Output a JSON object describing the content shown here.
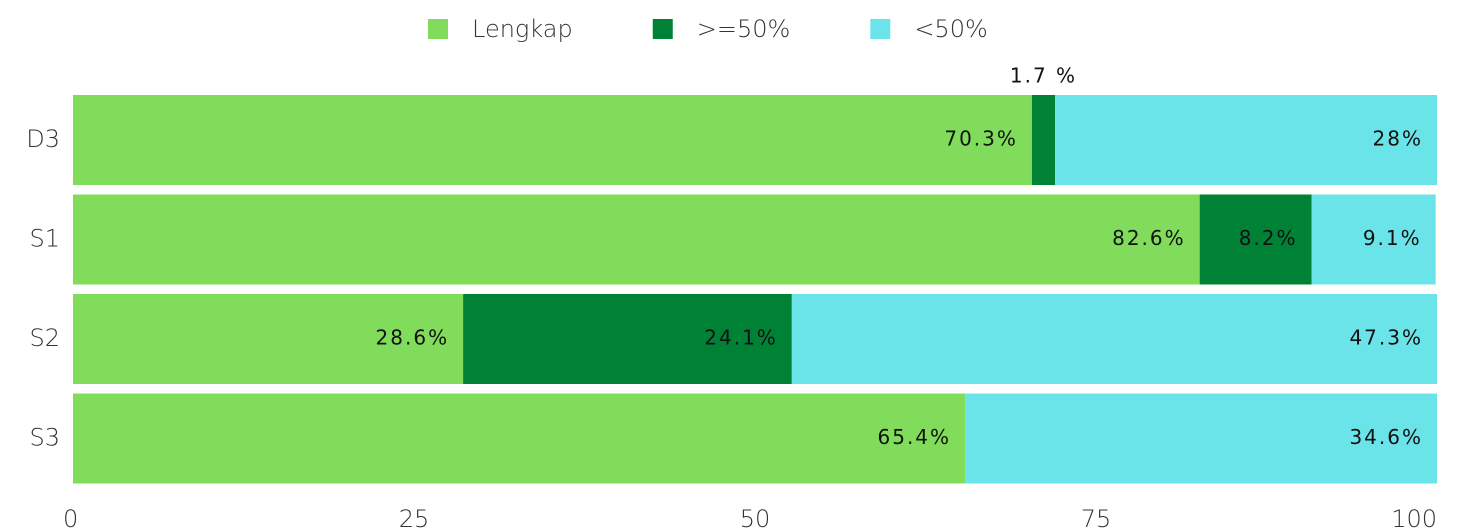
{
  "chart_data": {
    "type": "stacked_barh",
    "categories": [
      "D3",
      "S1",
      "S2",
      "S3"
    ],
    "series": [
      {
        "name": "Lengkap",
        "color": "#80dc5a",
        "values": [
          70.3,
          82.6,
          28.6,
          65.4
        ],
        "value_labels": [
          "70.3%",
          "82.6%",
          "28.6%",
          "65.4%"
        ]
      },
      {
        "name": ">=50%",
        "color": "#008236",
        "values": [
          1.7,
          8.2,
          24.1,
          null
        ],
        "value_labels": [
          "1.7 %",
          "8.2%",
          "24.1%",
          null
        ]
      },
      {
        "name": "<50%",
        "color": "#6ae4e8",
        "values": [
          28,
          9.1,
          47.3,
          34.6
        ],
        "value_labels": [
          "28%",
          "9.1%",
          "47.3%",
          "34.6%"
        ]
      }
    ],
    "xlim": [
      0,
      100
    ],
    "xticks": [
      0,
      25,
      50,
      75,
      100
    ],
    "grid": false,
    "legend": "top"
  }
}
